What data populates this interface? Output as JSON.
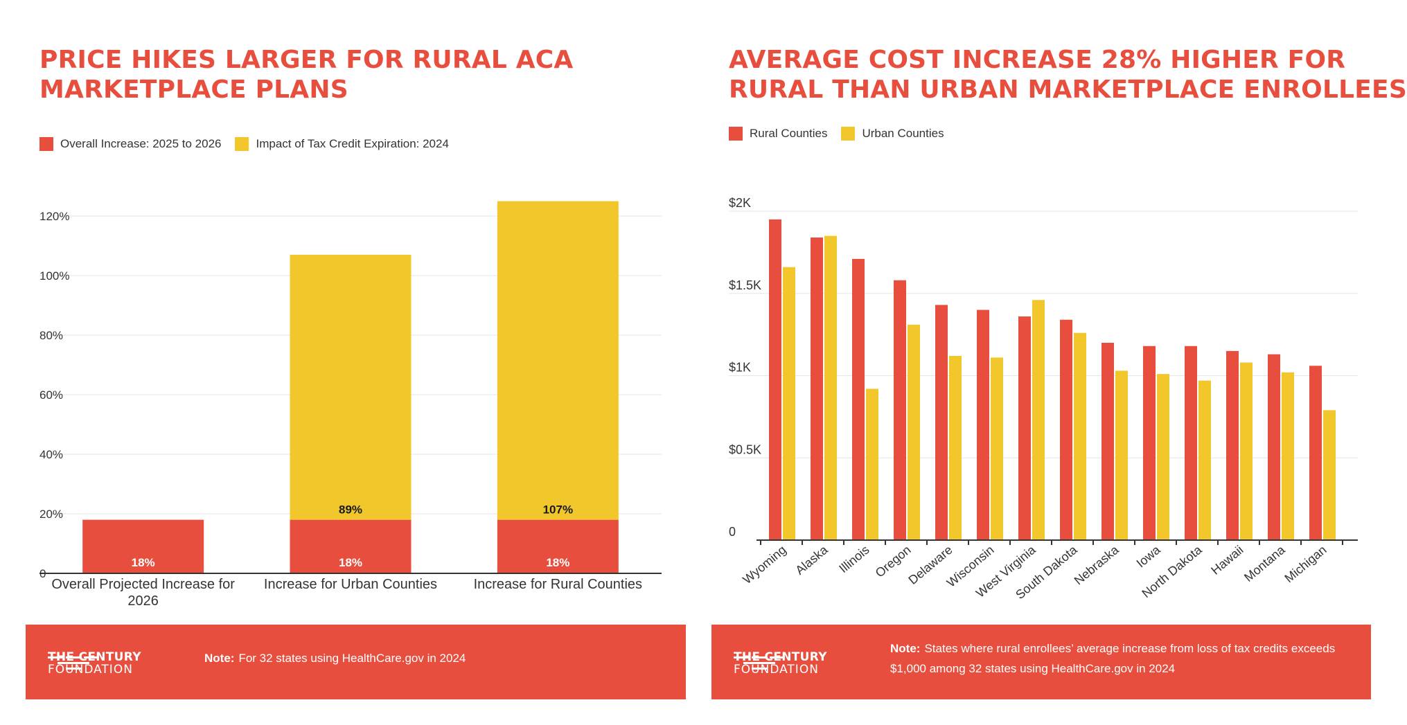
{
  "left": {
    "title_line1": "PRICE HIKES LARGER FOR RURAL ACA",
    "title_line2": "MARKETPLACE PLANS",
    "footer": {
      "brand_line1": "THE CENTURY",
      "brand_line2": "FOUNDATION",
      "note_label": "Note:",
      "note_text": "For 32 states using HealthCare.gov in 2024"
    }
  },
  "right": {
    "title_line1": "AVERAGE COST INCREASE 28% HIGHER FOR",
    "title_line2": "RURAL THAN URBAN MARKETPLACE ENROLLEES",
    "footer": {
      "brand_line1": "THE CENTURY",
      "brand_line2": "FOUNDATION",
      "note_label": "Note:",
      "note_line1": "States where rural enrollees’ average increase from loss of tax credits exceeds",
      "note_line2": "$1,000 among 32 states using HealthCare.gov in 2024"
    }
  },
  "colors": {
    "red": "#e84e3e",
    "yellow": "#f2c72c",
    "grid": "#e6e6e6",
    "axis": "#333333"
  },
  "chart_data": [
    {
      "type": "bar",
      "stacked": true,
      "title": "PRICE HIKES LARGER FOR RURAL ACA MARKETPLACE PLANS",
      "categories": [
        [
          "Overall Projected Increase for",
          "2026"
        ],
        [
          "Increase for Urban Counties"
        ],
        [
          "Increase for Rural Counties"
        ]
      ],
      "series": [
        {
          "name": "Overall Increase: 2025 to 2026",
          "color": "#e84e3e",
          "values": [
            18,
            18,
            18
          ],
          "labels": [
            "18%",
            "18%",
            "18%"
          ]
        },
        {
          "name": "Impact of Tax Credit Expiration: 2024",
          "color": "#f2c72c",
          "values": [
            0,
            89,
            107
          ],
          "labels": [
            "",
            "89%",
            "107%"
          ]
        }
      ],
      "yticks": [
        0,
        20,
        40,
        60,
        80,
        100,
        120
      ],
      "ytick_labels": [
        "0",
        "20%",
        "40%",
        "60%",
        "80%",
        "100%",
        "120%"
      ],
      "ylim": [
        0,
        125
      ],
      "legend_position": "top-left"
    },
    {
      "type": "bar",
      "title": "AVERAGE COST INCREASE 28% HIGHER FOR RURAL THAN URBAN MARKETPLACE ENROLLEES",
      "categories": [
        "Wyoming",
        "Alaska",
        "Illinois",
        "Oregon",
        "Delaware",
        "Wisconsin",
        "West Virginia",
        "South Dakota",
        "Nebraska",
        "Iowa",
        "North Dakota",
        "Hawaii",
        "Montana",
        "Michigan"
      ],
      "series": [
        {
          "name": "Rural Counties",
          "color": "#e84e3e",
          "values": [
            1950,
            1840,
            1710,
            1580,
            1430,
            1400,
            1360,
            1340,
            1200,
            1180,
            1180,
            1150,
            1130,
            1060
          ]
        },
        {
          "name": "Urban Counties",
          "color": "#f2c72c",
          "values": [
            1660,
            1850,
            920,
            1310,
            1120,
            1110,
            1460,
            1260,
            1030,
            1010,
            970,
            1080,
            1020,
            790
          ]
        }
      ],
      "yticks": [
        0,
        500,
        1000,
        1500,
        2000
      ],
      "ytick_labels": [
        "0",
        "$0.5K",
        "$1K",
        "$1.5K",
        "$2K"
      ],
      "ylim": [
        0,
        2000
      ],
      "legend_position": "top-left"
    }
  ]
}
